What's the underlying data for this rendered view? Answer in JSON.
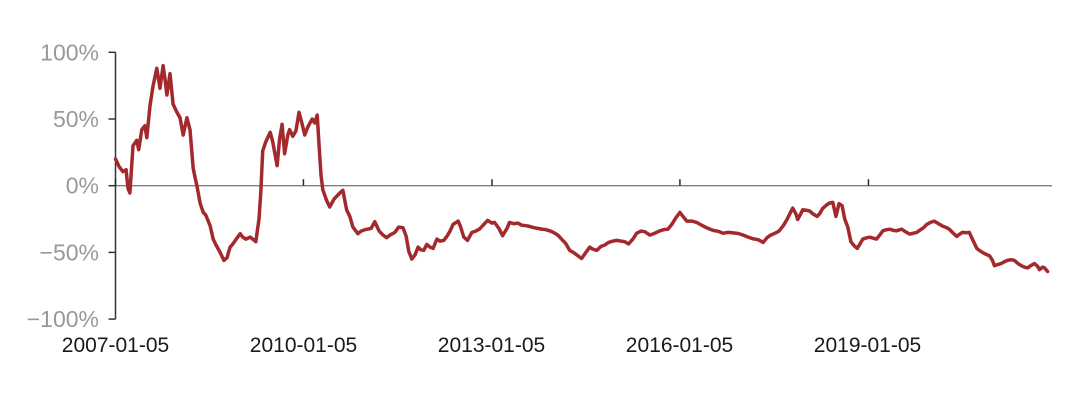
{
  "chart_data": {
    "type": "line",
    "title": "",
    "x_axis_unit": "decimal_year",
    "y_axis_unit": "percent",
    "xlim": [
      2007.01,
      2021.96
    ],
    "ylim": [
      -100,
      100
    ],
    "grid": "off",
    "zero_line": true,
    "legend": "none",
    "colors": {
      "line": "#A3292D",
      "zero_line": "#7F7F7F",
      "axis": "#333333",
      "y_tick_label": "#999999",
      "x_tick_label": "#1A1A1A"
    },
    "y_ticks": [
      {
        "value": 100,
        "label": "100%"
      },
      {
        "value": 50,
        "label": "50%"
      },
      {
        "value": 0,
        "label": "0%"
      },
      {
        "value": -50,
        "label": "−50%"
      },
      {
        "value": -100,
        "label": "−100%"
      }
    ],
    "x_ticks": [
      {
        "value": 2007.01,
        "label": "2007-01-05"
      },
      {
        "value": 2010.01,
        "label": "2010-01-05"
      },
      {
        "value": 2013.02,
        "label": "2013-01-05"
      },
      {
        "value": 2016.02,
        "label": "2016-01-05"
      },
      {
        "value": 2019.03,
        "label": "2019-01-05"
      }
    ],
    "points": [
      [
        2007.01,
        20
      ],
      [
        2007.07,
        14
      ],
      [
        2007.13,
        10.5
      ],
      [
        2007.18,
        12
      ],
      [
        2007.21,
        -2
      ],
      [
        2007.24,
        -5.5
      ],
      [
        2007.29,
        30
      ],
      [
        2007.35,
        34
      ],
      [
        2007.38,
        27
      ],
      [
        2007.43,
        42
      ],
      [
        2007.48,
        45
      ],
      [
        2007.51,
        36
      ],
      [
        2007.56,
        60
      ],
      [
        2007.61,
        75
      ],
      [
        2007.67,
        88
      ],
      [
        2007.72,
        73
      ],
      [
        2007.77,
        90
      ],
      [
        2007.8,
        80
      ],
      [
        2007.83,
        68
      ],
      [
        2007.88,
        84
      ],
      [
        2007.93,
        61
      ],
      [
        2007.99,
        55
      ],
      [
        2008.04,
        51
      ],
      [
        2008.09,
        38
      ],
      [
        2008.15,
        51
      ],
      [
        2008.2,
        42
      ],
      [
        2008.25,
        13
      ],
      [
        2008.28,
        6
      ],
      [
        2008.31,
        0
      ],
      [
        2008.36,
        -13
      ],
      [
        2008.41,
        -20
      ],
      [
        2008.45,
        -22
      ],
      [
        2008.52,
        -30
      ],
      [
        2008.57,
        -40
      ],
      [
        2008.61,
        -44
      ],
      [
        2008.68,
        -50
      ],
      [
        2008.74,
        -56
      ],
      [
        2008.79,
        -54
      ],
      [
        2008.84,
        -46
      ],
      [
        2008.88,
        -44
      ],
      [
        2008.93,
        -40.5
      ],
      [
        2009.0,
        -36
      ],
      [
        2009.04,
        -38.5
      ],
      [
        2009.09,
        -40
      ],
      [
        2009.16,
        -38.5
      ],
      [
        2009.2,
        -40
      ],
      [
        2009.25,
        -42
      ],
      [
        2009.3,
        -25
      ],
      [
        2009.33,
        -5
      ],
      [
        2009.36,
        26
      ],
      [
        2009.41,
        33
      ],
      [
        2009.48,
        40
      ],
      [
        2009.52,
        33
      ],
      [
        2009.59,
        15
      ],
      [
        2009.63,
        35
      ],
      [
        2009.67,
        46
      ],
      [
        2009.71,
        24
      ],
      [
        2009.76,
        38
      ],
      [
        2009.79,
        42
      ],
      [
        2009.84,
        37
      ],
      [
        2009.89,
        41
      ],
      [
        2009.94,
        55
      ],
      [
        2009.99,
        46
      ],
      [
        2010.03,
        38
      ],
      [
        2010.08,
        44
      ],
      [
        2010.15,
        50
      ],
      [
        2010.19,
        47
      ],
      [
        2010.23,
        53
      ],
      [
        2010.26,
        30
      ],
      [
        2010.29,
        8
      ],
      [
        2010.32,
        -3
      ],
      [
        2010.38,
        -11
      ],
      [
        2010.43,
        -16
      ],
      [
        2010.5,
        -10
      ],
      [
        2010.54,
        -8
      ],
      [
        2010.59,
        -5.5
      ],
      [
        2010.64,
        -3.5
      ],
      [
        2010.7,
        -18
      ],
      [
        2010.75,
        -23
      ],
      [
        2010.8,
        -31
      ],
      [
        2010.88,
        -36
      ],
      [
        2010.93,
        -34
      ],
      [
        2010.99,
        -33
      ],
      [
        2011.04,
        -32.5
      ],
      [
        2011.09,
        -32
      ],
      [
        2011.15,
        -27
      ],
      [
        2011.22,
        -34
      ],
      [
        2011.28,
        -37
      ],
      [
        2011.34,
        -39
      ],
      [
        2011.39,
        -37
      ],
      [
        2011.47,
        -35
      ],
      [
        2011.53,
        -31
      ],
      [
        2011.6,
        -31.5
      ],
      [
        2011.65,
        -38
      ],
      [
        2011.69,
        -49
      ],
      [
        2011.74,
        -55
      ],
      [
        2011.79,
        -52
      ],
      [
        2011.84,
        -46
      ],
      [
        2011.88,
        -48
      ],
      [
        2011.93,
        -48.5
      ],
      [
        2011.98,
        -44
      ],
      [
        2012.03,
        -46
      ],
      [
        2012.08,
        -47
      ],
      [
        2012.14,
        -40
      ],
      [
        2012.19,
        -41.5
      ],
      [
        2012.25,
        -41
      ],
      [
        2012.3,
        -38
      ],
      [
        2012.35,
        -34
      ],
      [
        2012.4,
        -29
      ],
      [
        2012.48,
        -26.5
      ],
      [
        2012.52,
        -31
      ],
      [
        2012.57,
        -38.5
      ],
      [
        2012.63,
        -41
      ],
      [
        2012.7,
        -35
      ],
      [
        2012.76,
        -34
      ],
      [
        2012.82,
        -32.5
      ],
      [
        2012.89,
        -29
      ],
      [
        2012.95,
        -26
      ],
      [
        2013.02,
        -28
      ],
      [
        2013.06,
        -27.5
      ],
      [
        2013.13,
        -32
      ],
      [
        2013.19,
        -37.5
      ],
      [
        2013.26,
        -32
      ],
      [
        2013.3,
        -27.5
      ],
      [
        2013.37,
        -28.5
      ],
      [
        2013.43,
        -28
      ],
      [
        2013.49,
        -29.5
      ],
      [
        2013.56,
        -30
      ],
      [
        2013.62,
        -30.5
      ],
      [
        2013.69,
        -31.5
      ],
      [
        2013.75,
        -32
      ],
      [
        2013.81,
        -32.5
      ],
      [
        2013.88,
        -33
      ],
      [
        2013.94,
        -33.8
      ],
      [
        2014.0,
        -35
      ],
      [
        2014.07,
        -37
      ],
      [
        2014.13,
        -40
      ],
      [
        2014.2,
        -43.5
      ],
      [
        2014.26,
        -48.5
      ],
      [
        2014.32,
        -50
      ],
      [
        2014.39,
        -52.5
      ],
      [
        2014.45,
        -54.6
      ],
      [
        2014.52,
        -50
      ],
      [
        2014.58,
        -46
      ],
      [
        2014.63,
        -47.5
      ],
      [
        2014.69,
        -48.5
      ],
      [
        2014.76,
        -45.5
      ],
      [
        2014.82,
        -44.5
      ],
      [
        2014.88,
        -42.5
      ],
      [
        2014.95,
        -41.5
      ],
      [
        2015.01,
        -41
      ],
      [
        2015.08,
        -41.5
      ],
      [
        2015.14,
        -42
      ],
      [
        2015.2,
        -43.6
      ],
      [
        2015.27,
        -40
      ],
      [
        2015.33,
        -35.6
      ],
      [
        2015.4,
        -34
      ],
      [
        2015.46,
        -34.5
      ],
      [
        2015.54,
        -37
      ],
      [
        2015.62,
        -35.6
      ],
      [
        2015.7,
        -33.8
      ],
      [
        2015.76,
        -33
      ],
      [
        2015.83,
        -32.5
      ],
      [
        2015.89,
        -29
      ],
      [
        2015.95,
        -24.5
      ],
      [
        2016.02,
        -20
      ],
      [
        2016.07,
        -23
      ],
      [
        2016.13,
        -26.5
      ],
      [
        2016.21,
        -26.5
      ],
      [
        2016.29,
        -27.6
      ],
      [
        2016.39,
        -30.2
      ],
      [
        2016.47,
        -32
      ],
      [
        2016.55,
        -33.5
      ],
      [
        2016.63,
        -34.2
      ],
      [
        2016.71,
        -35.6
      ],
      [
        2016.79,
        -35
      ],
      [
        2016.87,
        -35.4
      ],
      [
        2016.95,
        -35.8
      ],
      [
        2017.03,
        -37
      ],
      [
        2017.11,
        -38.5
      ],
      [
        2017.19,
        -39.8
      ],
      [
        2017.27,
        -40.5
      ],
      [
        2017.35,
        -42.5
      ],
      [
        2017.41,
        -39
      ],
      [
        2017.47,
        -37
      ],
      [
        2017.54,
        -35.6
      ],
      [
        2017.6,
        -34
      ],
      [
        2017.67,
        -30
      ],
      [
        2017.73,
        -25.3
      ],
      [
        2017.78,
        -20.5
      ],
      [
        2017.82,
        -16.8
      ],
      [
        2017.87,
        -21
      ],
      [
        2017.9,
        -25.3
      ],
      [
        2017.95,
        -21
      ],
      [
        2017.98,
        -18
      ],
      [
        2018.05,
        -18.5
      ],
      [
        2018.09,
        -19
      ],
      [
        2018.14,
        -21
      ],
      [
        2018.21,
        -23
      ],
      [
        2018.25,
        -21
      ],
      [
        2018.3,
        -17
      ],
      [
        2018.37,
        -14.2
      ],
      [
        2018.41,
        -13
      ],
      [
        2018.46,
        -12.5
      ],
      [
        2018.51,
        -23
      ],
      [
        2018.56,
        -13.5
      ],
      [
        2018.61,
        -15
      ],
      [
        2018.65,
        -25
      ],
      [
        2018.7,
        -31
      ],
      [
        2018.75,
        -42
      ],
      [
        2018.8,
        -45
      ],
      [
        2018.85,
        -47
      ],
      [
        2018.89,
        -44
      ],
      [
        2018.94,
        -40
      ],
      [
        2019.01,
        -39
      ],
      [
        2019.05,
        -38.6
      ],
      [
        2019.12,
        -39.5
      ],
      [
        2019.16,
        -40
      ],
      [
        2019.21,
        -37
      ],
      [
        2019.26,
        -33.8
      ],
      [
        2019.32,
        -33
      ],
      [
        2019.37,
        -32.6
      ],
      [
        2019.43,
        -33.5
      ],
      [
        2019.48,
        -33.8
      ],
      [
        2019.53,
        -33
      ],
      [
        2019.56,
        -32.6
      ],
      [
        2019.62,
        -34.5
      ],
      [
        2019.69,
        -36.3
      ],
      [
        2019.73,
        -35.8
      ],
      [
        2019.8,
        -35
      ],
      [
        2019.86,
        -33
      ],
      [
        2019.91,
        -31.5
      ],
      [
        2019.96,
        -29
      ],
      [
        2020.02,
        -27.5
      ],
      [
        2020.08,
        -26.5
      ],
      [
        2020.15,
        -28.5
      ],
      [
        2020.21,
        -30.2
      ],
      [
        2020.28,
        -31.5
      ],
      [
        2020.32,
        -32.6
      ],
      [
        2020.37,
        -35
      ],
      [
        2020.44,
        -38
      ],
      [
        2020.48,
        -36.5
      ],
      [
        2020.53,
        -35
      ],
      [
        2020.6,
        -35.2
      ],
      [
        2020.64,
        -35
      ],
      [
        2020.69,
        -40
      ],
      [
        2020.76,
        -47
      ],
      [
        2020.8,
        -48.5
      ],
      [
        2020.85,
        -50
      ],
      [
        2020.91,
        -51.5
      ],
      [
        2020.96,
        -52.5
      ],
      [
        2021.01,
        -56
      ],
      [
        2021.04,
        -60
      ],
      [
        2021.1,
        -59
      ],
      [
        2021.15,
        -58.3
      ],
      [
        2021.2,
        -57
      ],
      [
        2021.25,
        -56
      ],
      [
        2021.31,
        -55.5
      ],
      [
        2021.36,
        -56
      ],
      [
        2021.42,
        -58.5
      ],
      [
        2021.47,
        -60
      ],
      [
        2021.52,
        -61
      ],
      [
        2021.57,
        -61.6
      ],
      [
        2021.62,
        -60
      ],
      [
        2021.68,
        -58.3
      ],
      [
        2021.73,
        -60.5
      ],
      [
        2021.76,
        -63
      ],
      [
        2021.81,
        -61
      ],
      [
        2021.84,
        -61.6
      ],
      [
        2021.89,
        -64.3
      ]
    ]
  }
}
